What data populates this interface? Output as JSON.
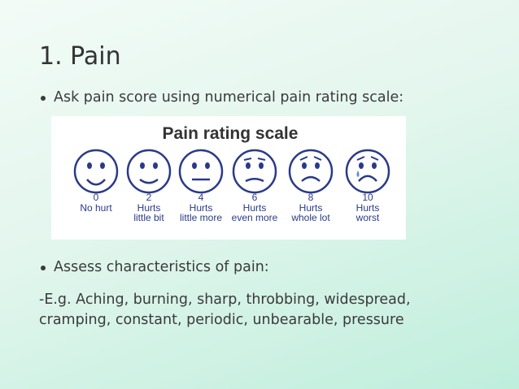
{
  "title": "1. Pain",
  "bullet_1": "Ask pain score using numerical pain rating scale:",
  "scale": {
    "title": "Pain rating scale",
    "faces": [
      {
        "score": 0,
        "label": [
          "No hurt"
        ]
      },
      {
        "score": 2,
        "label": [
          "Hurts",
          "little bit"
        ]
      },
      {
        "score": 4,
        "label": [
          "Hurts",
          "little more"
        ]
      },
      {
        "score": 6,
        "label": [
          "Hurts",
          "even more"
        ]
      },
      {
        "score": 8,
        "label": [
          "Hurts",
          "whole lot"
        ]
      },
      {
        "score": 10,
        "label": [
          "Hurts",
          "worst"
        ]
      }
    ]
  },
  "bullet_2": "Assess characteristics of pain:",
  "detail": [
    "-E.g. Aching, burning, sharp, throbbing, widespread,",
    "cramping, constant, periodic, unbearable, pressure"
  ]
}
